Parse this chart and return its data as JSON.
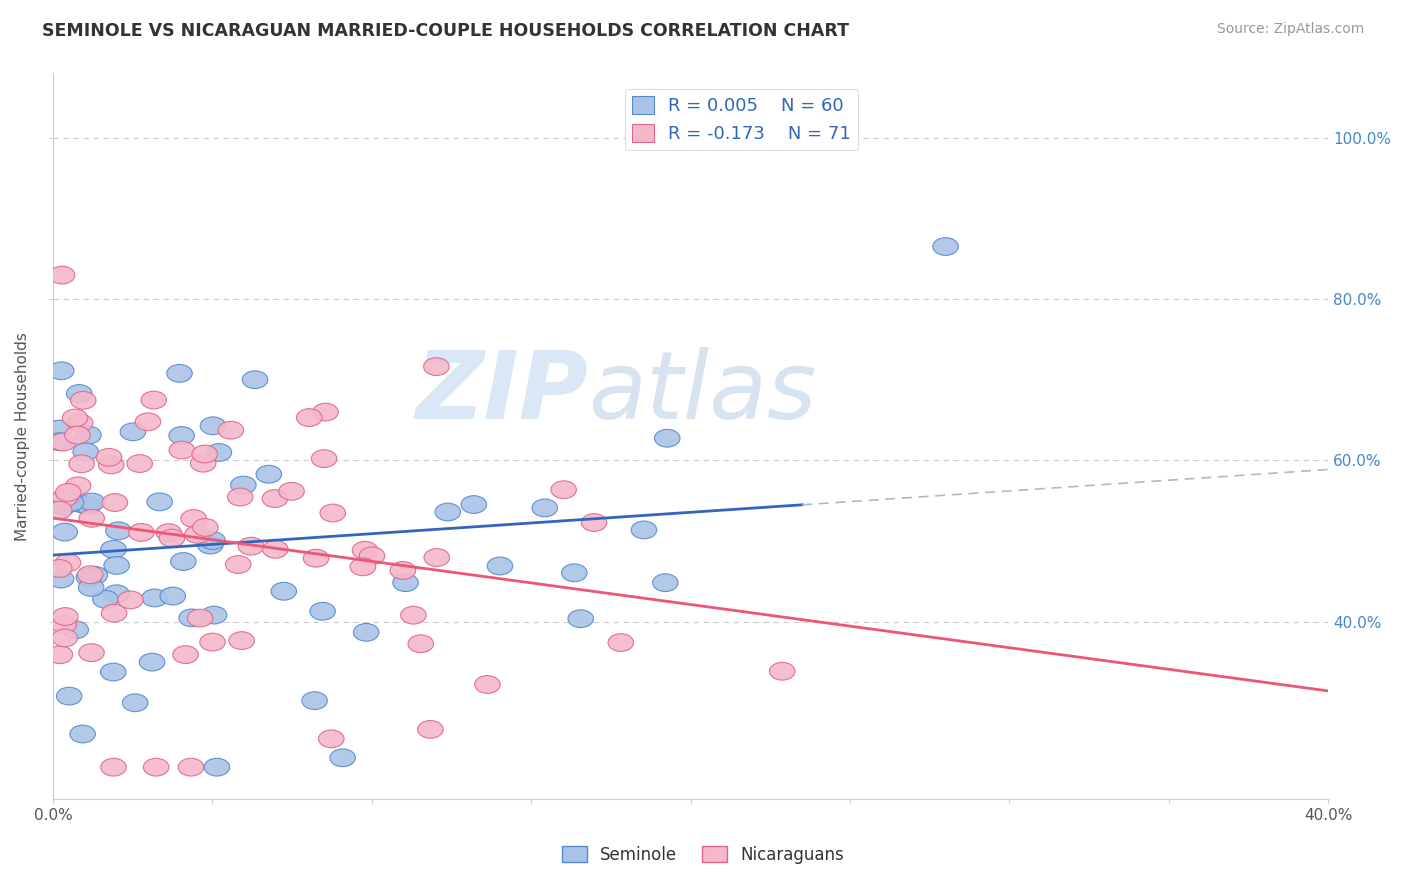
{
  "title": "SEMINOLE VS NICARAGUAN MARRIED-COUPLE HOUSEHOLDS CORRELATION CHART",
  "source": "Source: ZipAtlas.com",
  "ylabel": "Married-couple Households",
  "yticklabels_right": [
    "40.0%",
    "60.0%",
    "80.0%",
    "100.0%"
  ],
  "ytick_values": [
    0.4,
    0.6,
    0.8,
    1.0
  ],
  "xlim": [
    0.0,
    0.4
  ],
  "ylim": [
    0.18,
    1.08
  ],
  "seminole_color": "#aac4e8",
  "nicaraguan_color": "#f5b8cb",
  "seminole_edge": "#5588cc",
  "nicaraguan_edge": "#dd6688",
  "trend_seminole_color": "#3366bb",
  "trend_nicaraguan_color": "#ee5577",
  "R_seminole": 0.005,
  "N_seminole": 60,
  "R_nicaraguan": -0.173,
  "N_nicaraguan": 71,
  "watermark_zip": "ZIP",
  "watermark_atlas": "atlas",
  "watermark_color": "#c8ddf0",
  "watermark_atlas_color": "#b8cce4",
  "legend_blue_label": "Seminole",
  "legend_pink_label": "Nicaraguans",
  "background_color": "#ffffff",
  "grid_color": "#cccccc",
  "dashed_line_color": "#aabbcc",
  "seminole_trend_y0": 0.508,
  "seminole_trend_y1": 0.51,
  "nicaraguan_trend_y0": 0.555,
  "nicaraguan_trend_y1": 0.37,
  "dashed_line_y": 0.51,
  "dashed_line_x_start": 0.235
}
